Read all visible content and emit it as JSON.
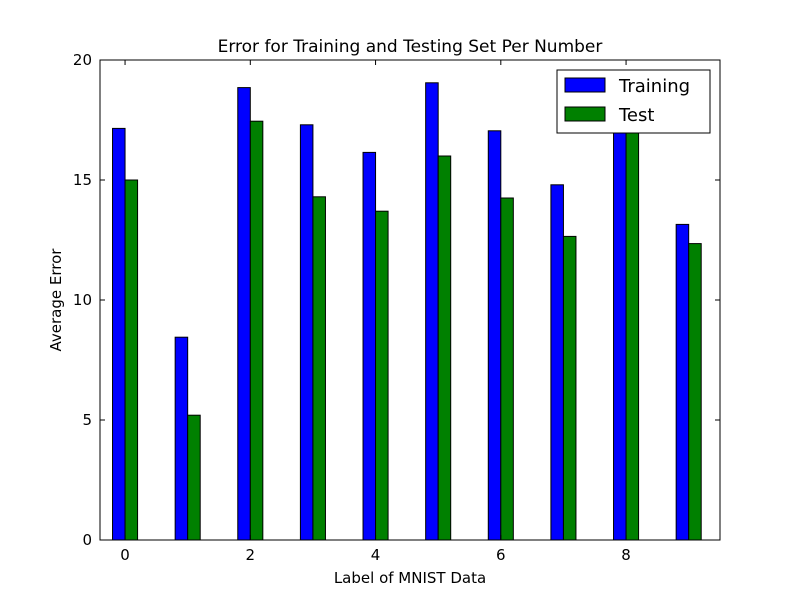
{
  "chart_data": {
    "type": "bar",
    "title": "Error for Training and Testing Set Per Number",
    "xlabel": "Label of MNIST Data",
    "ylabel": "Average Error",
    "categories": [
      "0",
      "1",
      "2",
      "3",
      "4",
      "5",
      "6",
      "7",
      "8",
      "9"
    ],
    "x_ticks": [
      "0",
      "2",
      "4",
      "6",
      "8"
    ],
    "y_ticks": [
      "0",
      "5",
      "10",
      "15",
      "20"
    ],
    "xlim": [
      -0.4,
      9.5
    ],
    "ylim": [
      0,
      20
    ],
    "grid": false,
    "legend_position": "top-right",
    "series": [
      {
        "name": "Training",
        "color": "#0000ff",
        "values": [
          17.15,
          8.45,
          18.85,
          17.3,
          16.15,
          19.05,
          17.05,
          14.8,
          17.0,
          13.15
        ]
      },
      {
        "name": "Test",
        "color": "#008000",
        "values": [
          15.0,
          5.2,
          17.45,
          14.3,
          13.7,
          16.0,
          14.25,
          12.65,
          17.0,
          12.35
        ]
      }
    ]
  }
}
